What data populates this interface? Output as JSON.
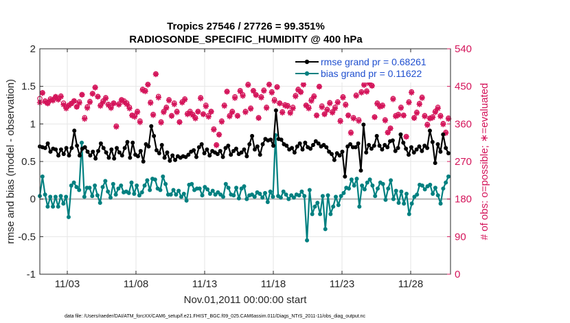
{
  "chart_data": {
    "type": "line",
    "title_line1": "Tropics 27546 / 27726 = 99.351%",
    "title_line2": "RADIOSONDE_SPECIFIC_HUMIDITY @ 400 hPa",
    "xlabel": "Nov.01,2011 00:00:00 start",
    "ylabel_left": "rmse and bias (model - observation)",
    "ylabel_right": "# of obs: o=possible; ∗=evaluated",
    "footer": "data file: /Users/raeder/DAI/ATM_forcXX/CAM6_setup/f.e21.FHIST_BGC.f09_025.CAM6assim.011/Diags_NTrS_2011-11/obs_diag_output.nc",
    "x_tick_labels": [
      "11/03",
      "11/08",
      "11/13",
      "11/18",
      "11/23",
      "11/28"
    ],
    "x_tick_days": [
      3,
      8,
      13,
      18,
      23,
      28
    ],
    "xlim_days": [
      1,
      30.9
    ],
    "ylim_left": [
      -1,
      2
    ],
    "y_ticks_left": [
      "-1",
      "-0.5",
      "0",
      "0.5",
      "1",
      "1.5",
      "2"
    ],
    "ylim_right": [
      0,
      540
    ],
    "y_ticks_right": [
      "0",
      "90",
      "180",
      "270",
      "360",
      "450",
      "540"
    ],
    "colors": {
      "rmse": "#000000",
      "bias": "#008080",
      "obs": "#d4145a",
      "right_axis": "#d4145a",
      "zero_line": "#b3b3b3",
      "legend_text": "#1f4fcf"
    },
    "legend": [
      "rmse grand pr = 0.68261",
      "bias grand pr = 0.11622"
    ],
    "series": [
      {
        "name": "rmse",
        "values": [
          0.7,
          0.69,
          0.68,
          0.74,
          0.63,
          0.67,
          0.66,
          0.58,
          0.66,
          0.6,
          0.68,
          0.58,
          0.68,
          0.91,
          0.71,
          0.58,
          0.67,
          0.69,
          0.63,
          0.58,
          0.63,
          0.54,
          0.64,
          0.74,
          0.68,
          0.62,
          0.55,
          0.66,
          0.54,
          0.68,
          0.62,
          0.58,
          0.68,
          0.76,
          0.55,
          0.75,
          0.59,
          0.57,
          0.64,
          0.5,
          0.73,
          0.7,
          0.97,
          0.84,
          0.65,
          0.61,
          0.72,
          0.55,
          0.62,
          0.51,
          0.58,
          0.52,
          0.57,
          0.55,
          0.57,
          0.56,
          0.59,
          0.63,
          0.65,
          0.56,
          0.69,
          0.73,
          0.61,
          0.66,
          0.58,
          0.64,
          0.62,
          0.6,
          0.64,
          0.56,
          0.68,
          0.71,
          0.59,
          0.64,
          0.67,
          0.6,
          0.62,
          0.66,
          0.57,
          0.73,
          0.84,
          0.66,
          0.7,
          0.59,
          0.73,
          0.8,
          0.78,
          0.79,
          0.71,
          1.18,
          0.8,
          0.79,
          0.73,
          0.71,
          0.66,
          0.68,
          0.62,
          0.7,
          0.74,
          0.66,
          0.75,
          0.69,
          0.67,
          0.72,
          0.77,
          0.74,
          0.7,
          0.72,
          0.69,
          0.63,
          0.6,
          0.52,
          0.61,
          0.58,
          0.63,
          0.3,
          0.7,
          0.73,
          0.69,
          0.69,
          0.74,
          0.38,
          0.99,
          0.62,
          0.72,
          0.67,
          0.71,
          0.84,
          0.71,
          0.66,
          0.72,
          0.69,
          0.77,
          0.78,
          0.64,
          0.68,
          0.86,
          0.75,
          0.67,
          0.59,
          0.69,
          0.62,
          0.66,
          0.7,
          0.64,
          0.71,
          0.68,
          0.91,
          0.76,
          0.48,
          0.73,
          0.63,
          0.86,
          0.68,
          0.61
        ]
      },
      {
        "name": "bias",
        "values": [
          0.04,
          0.3,
          0.06,
          -0.1,
          0.03,
          -0.1,
          0.03,
          -0.1,
          0.04,
          -0.06,
          0.03,
          -0.24,
          0.18,
          0.22,
          0.16,
          0.12,
          0.75,
          0.03,
          0.15,
          0.15,
          0.04,
          0.18,
          0.05,
          -0.05,
          0.16,
          0.24,
          0.1,
          0.02,
          0.2,
          0.06,
          0.14,
          0.18,
          0.09,
          0.1,
          0.08,
          0.22,
          0.07,
          0.18,
          0.05,
          0.09,
          0.18,
          0.25,
          0.12,
          0.27,
          0.26,
          0.14,
          0.12,
          0.3,
          0.2,
          0.06,
          0.06,
          0.12,
          0.06,
          0.11,
          0.03,
          0.07,
          -0.02,
          0.19,
          0.2,
          0.12,
          0.14,
          0.14,
          0.05,
          0.16,
          0.13,
          0.07,
          0.11,
          0.06,
          0.09,
          0.06,
          0.03,
          0.2,
          0.15,
          0.06,
          0.05,
          0.15,
          0.01,
          0.14,
          0.17,
          0.0,
          0.05,
          0.06,
          0.03,
          0.09,
          0.07,
          0.02,
          0.08,
          -0.04,
          0.1,
          0.03,
          0.85,
          0.04,
          0.02,
          0.1,
          0.06,
          0.0,
          0.05,
          0.02,
          0.06,
          0.05,
          0.1,
          0.04,
          -0.55,
          0.12,
          -0.2,
          -0.1,
          -0.05,
          -0.2,
          0.04,
          -0.4,
          0.05,
          -0.2,
          -0.1,
          0.03,
          -0.08,
          0.04,
          0.08,
          0.15,
          0.14,
          0.26,
          0.18,
          0.27,
          -0.1,
          0.18,
          0.13,
          0.22,
          0.26,
          0.18,
          0.04,
          0.14,
          0.22,
          0.2,
          -0.01,
          0.14,
          0.25,
          0.0,
          0.11,
          -0.05,
          0.1,
          -0.06,
          0.07,
          -0.2,
          -0.06,
          0.03,
          0.06,
          0.19,
          0.18,
          0.13,
          0.17,
          0.19,
          0.07,
          0.15,
          0.05,
          -0.06,
          0.14,
          0.22,
          0.3
        ]
      },
      {
        "name": "obs_possible",
        "values": [
          421,
          435,
          415,
          410,
          420,
          418,
          425,
          420,
          427,
          410,
          400,
          405,
          409,
          415,
          401,
          413,
          430,
          375,
          401,
          414,
          433,
          448,
          426,
          405,
          415,
          423,
          407,
          400,
          410,
          355,
          408,
          418,
          415,
          410,
          400,
          381,
          380,
          390,
          367,
          443,
          440,
          455,
          412,
          383,
          480,
          426,
          365,
          390,
          400,
          418,
          380,
          410,
          390,
          365,
          413,
          420,
          385,
          390,
          383,
          375,
          390,
          423,
          384,
          405,
          380,
          390,
          348,
          310,
          335,
          367,
          405,
          438,
          380,
          390,
          425,
          380,
          440,
          430,
          390,
          455,
          398,
          440,
          430,
          375,
          425,
          441,
          400,
          455,
          437,
          418,
          449,
          410,
          389,
          406,
          404,
          388,
          400,
          428,
          443,
          437,
          455,
          405,
          400,
          418,
          427,
          381,
          450,
          403,
          384,
          395,
          411,
          389,
          400,
          413,
          368,
          425,
          407,
          381,
          340,
          375,
          429,
          370,
          437,
          455,
          439,
          459,
          452,
          377,
          410,
          403,
          405,
          370,
          340,
          350,
          421,
          380,
          383,
          400,
          381,
          330,
          413,
          437,
          375,
          388,
          409,
          424,
          380,
          359,
          374,
          377,
          390,
          400,
          380,
          361,
          340,
          374
        ]
      },
      {
        "name": "obs_evaluated",
        "values": [
          411,
          434,
          413,
          409,
          417,
          416,
          425,
          418,
          425,
          406,
          397,
          404,
          409,
          415,
          401,
          410,
          430,
          372,
          398,
          412,
          432,
          447,
          425,
          403,
          412,
          421,
          405,
          398,
          409,
          353,
          406,
          417,
          412,
          407,
          397,
          380,
          377,
          388,
          364,
          441,
          438,
          454,
          410,
          381,
          479,
          423,
          363,
          388,
          398,
          416,
          379,
          407,
          388,
          364,
          411,
          418,
          383,
          387,
          381,
          373,
          389,
          421,
          383,
          402,
          377,
          389,
          346,
          309,
          334,
          365,
          403,
          437,
          378,
          388,
          422,
          379,
          438,
          427,
          388,
          453,
          396,
          439,
          429,
          374,
          423,
          439,
          398,
          454,
          435,
          415,
          448,
          409,
          387,
          404,
          402,
          386,
          397,
          426,
          441,
          436,
          454,
          404,
          397,
          415,
          425,
          380,
          449,
          400,
          383,
          393,
          409,
          387,
          397,
          411,
          366,
          423,
          405,
          380,
          338,
          373,
          427,
          367,
          435,
          453,
          437,
          457,
          451,
          376,
          408,
          401,
          403,
          368,
          339,
          349,
          419,
          378,
          381,
          398,
          380,
          329,
          411,
          435,
          374,
          386,
          407,
          422,
          378,
          357,
          373,
          375,
          388,
          397,
          378,
          359,
          338,
          372
        ]
      }
    ]
  }
}
